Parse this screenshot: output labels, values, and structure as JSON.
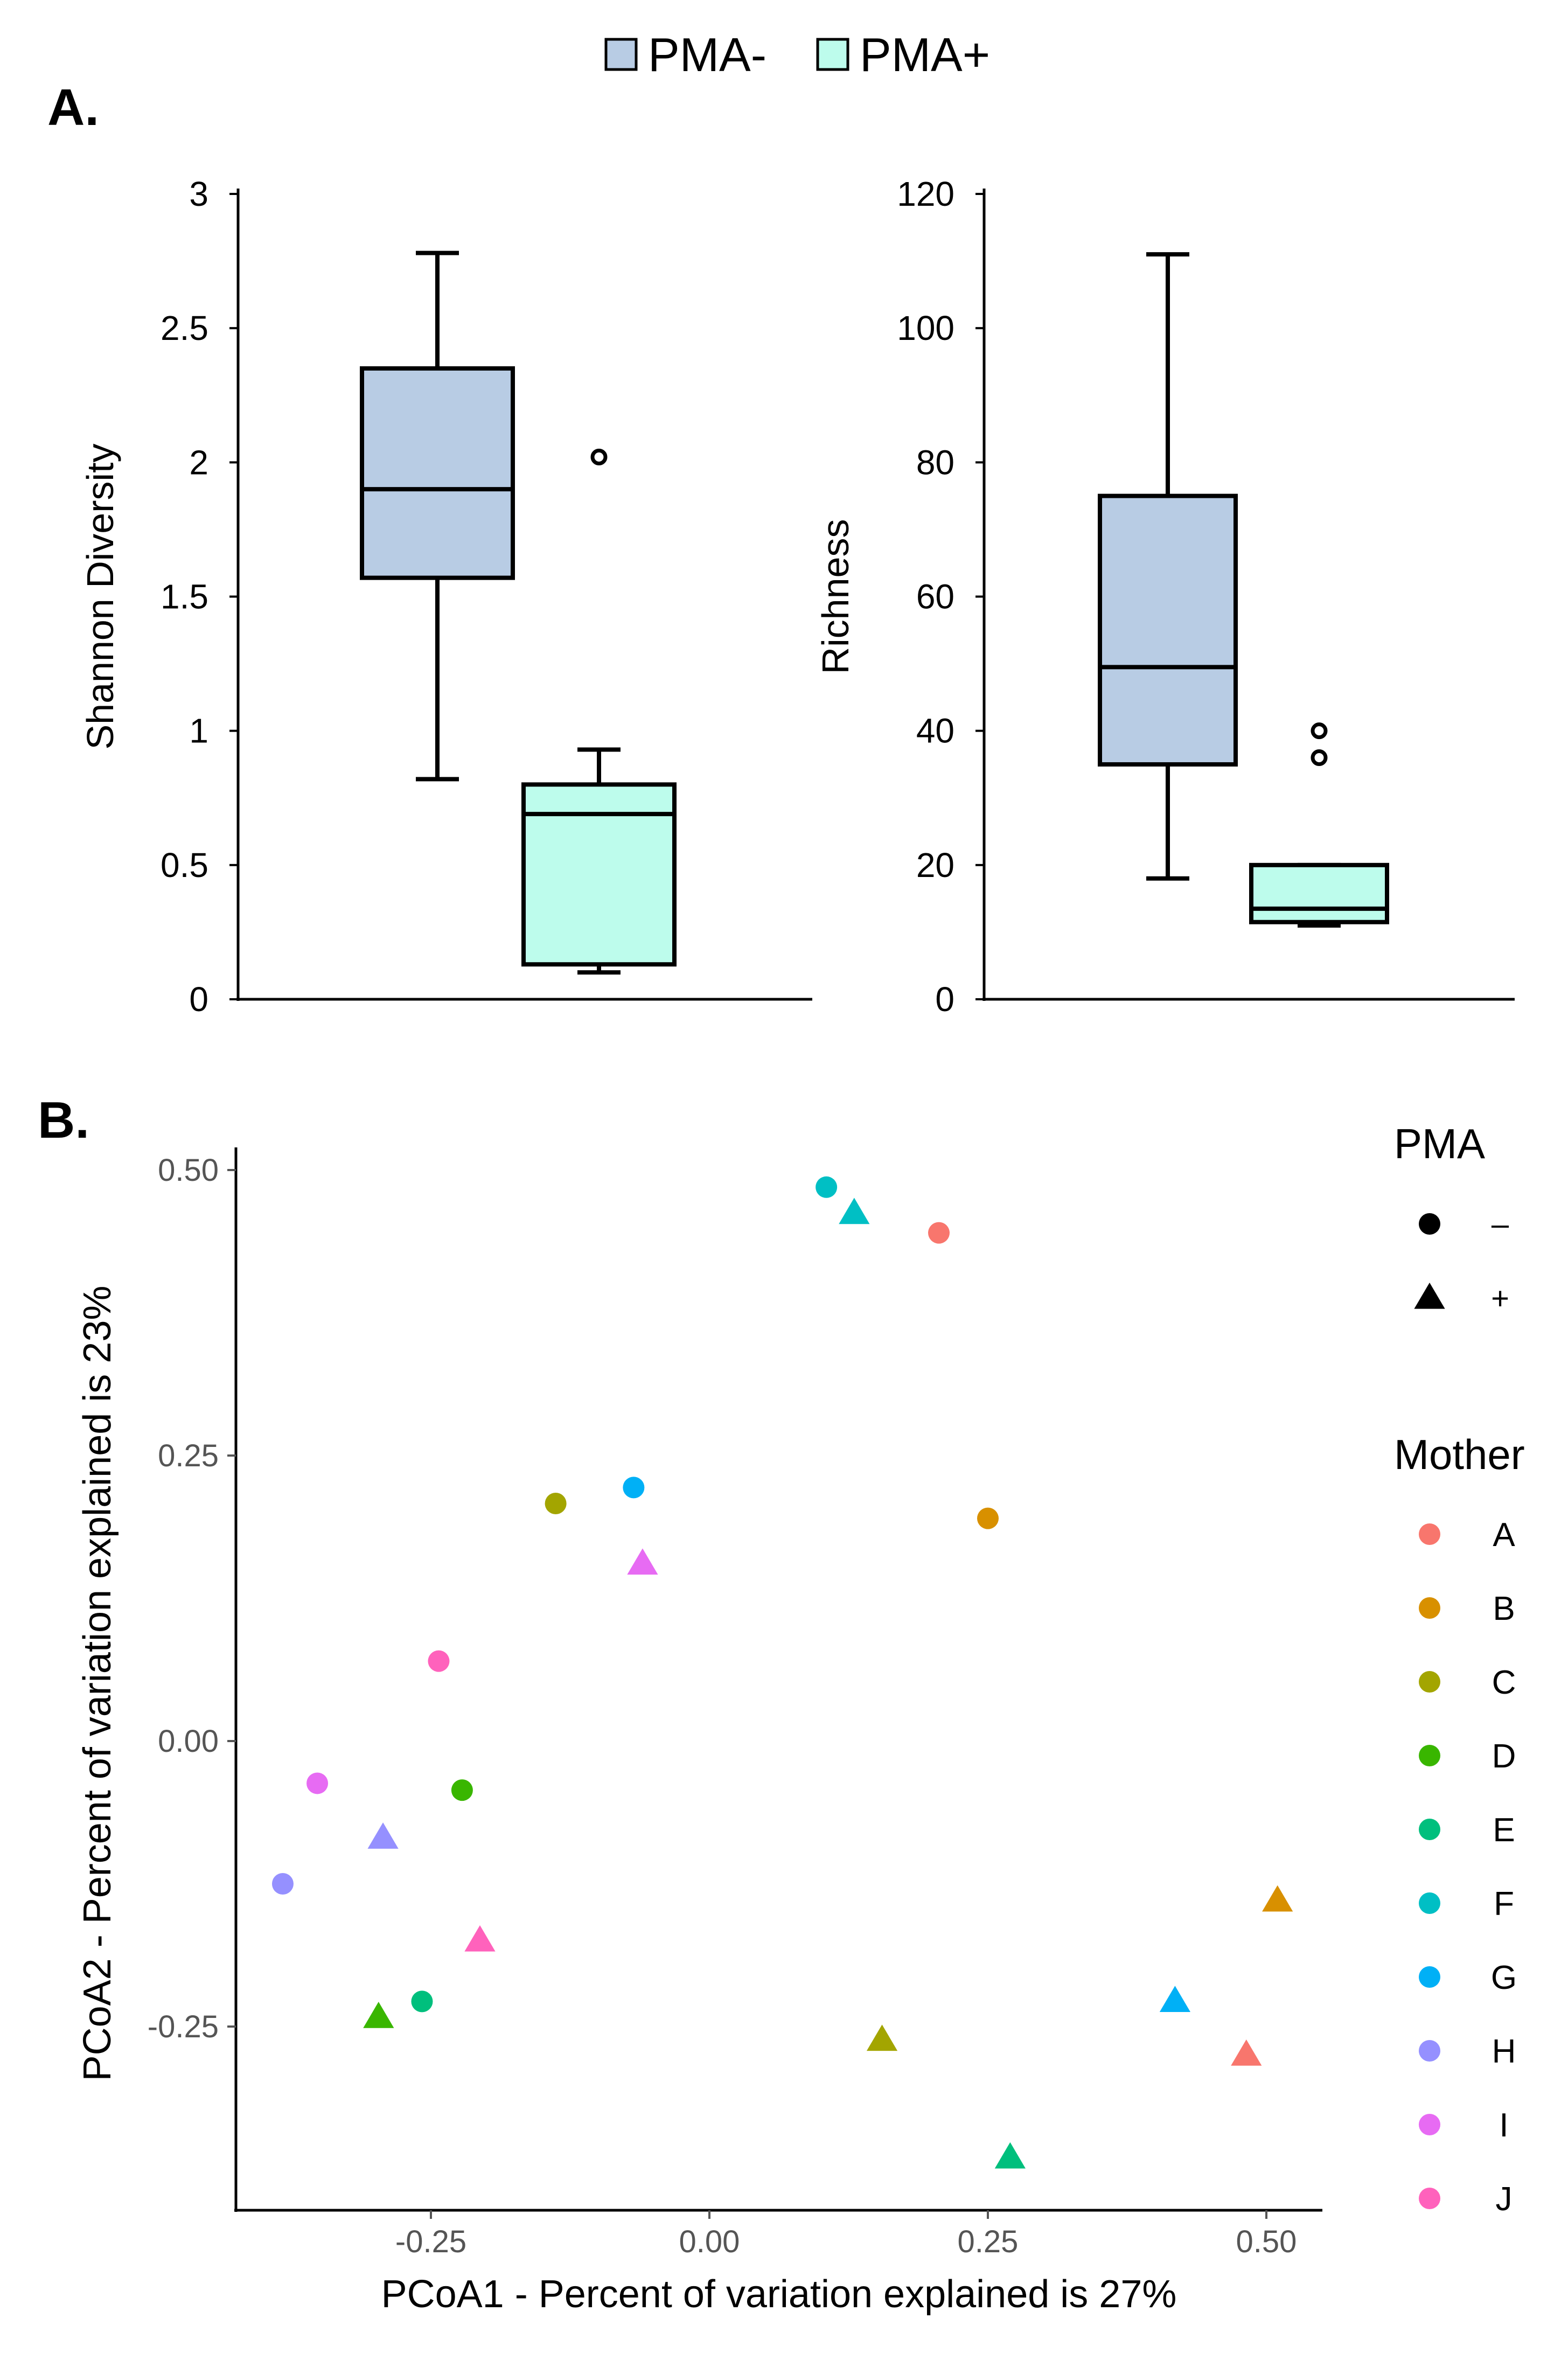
{
  "legend_top": {
    "items": [
      {
        "label": "PMA-",
        "color": "#b8cce4"
      },
      {
        "label": "PMA+",
        "color": "#bdfcec"
      }
    ]
  },
  "panel_a": {
    "label": "A."
  },
  "panel_b": {
    "label": "B."
  },
  "chart_data": [
    {
      "type": "box",
      "title": "",
      "ylabel": "Shannon Diversity",
      "xlabel": "",
      "ylim": [
        0,
        3
      ],
      "yticks": [
        {
          "v": 0,
          "label": "0"
        },
        {
          "v": 0.5,
          "label": "0.5"
        },
        {
          "v": 1,
          "label": "1"
        },
        {
          "v": 1.5,
          "label": "1.5"
        },
        {
          "v": 2,
          "label": "2"
        },
        {
          "v": 2.5,
          "label": "2.5"
        },
        {
          "v": 3,
          "label": "3"
        }
      ],
      "boxes": [
        {
          "group": "PMA-",
          "color": "#b8cce4",
          "whisker_low": 0.82,
          "q1": 1.57,
          "median": 1.9,
          "q3": 2.35,
          "whisker_high": 2.78,
          "outliers": []
        },
        {
          "group": "PMA+",
          "color": "#bdfcec",
          "whisker_low": 0.1,
          "q1": 0.13,
          "median": 0.69,
          "q3": 0.8,
          "whisker_high": 0.93,
          "outliers": [
            2.02
          ]
        }
      ]
    },
    {
      "type": "box",
      "title": "",
      "ylabel": "Richness",
      "xlabel": "",
      "ylim": [
        0,
        120
      ],
      "yticks": [
        {
          "v": 0,
          "label": "0"
        },
        {
          "v": 20,
          "label": "20"
        },
        {
          "v": 40,
          "label": "40"
        },
        {
          "v": 60,
          "label": "60"
        },
        {
          "v": 80,
          "label": "80"
        },
        {
          "v": 100,
          "label": "100"
        },
        {
          "v": 120,
          "label": "120"
        }
      ],
      "boxes": [
        {
          "group": "PMA-",
          "color": "#b8cce4",
          "whisker_low": 18,
          "q1": 35,
          "median": 49.5,
          "q3": 75,
          "whisker_high": 111,
          "outliers": []
        },
        {
          "group": "PMA+",
          "color": "#bdfcec",
          "whisker_low": 11,
          "q1": 11.5,
          "median": 13.5,
          "q3": 20,
          "whisker_high": 20,
          "outliers": [
            36,
            40
          ]
        }
      ]
    },
    {
      "type": "scatter",
      "title": "",
      "xlabel": "PCoA1 - Percent of variation explained is 27%",
      "ylabel": "PCoA2 - Percent of variation explained is 23%",
      "xlim": [
        -0.43,
        0.55
      ],
      "ylim": [
        -0.41,
        0.54
      ],
      "xticks": [
        {
          "v": -0.25,
          "label": "-0.25"
        },
        {
          "v": 0,
          "label": "0.00"
        },
        {
          "v": 0.25,
          "label": "0.25"
        },
        {
          "v": 0.5,
          "label": "0.50"
        }
      ],
      "yticks": [
        {
          "v": -0.25,
          "label": "-0.25"
        },
        {
          "v": 0,
          "label": "0.00"
        },
        {
          "v": 0.25,
          "label": "0.25"
        },
        {
          "v": 0.5,
          "label": "0.50"
        }
      ],
      "shape_legend": {
        "title": "PMA",
        "items": [
          {
            "shape": "circle",
            "label": "–"
          },
          {
            "shape": "triangle",
            "label": "+"
          }
        ]
      },
      "color_legend": {
        "title": "Mother",
        "items": [
          {
            "label": "A",
            "color": "#f8766d"
          },
          {
            "label": "B",
            "color": "#d89000"
          },
          {
            "label": "C",
            "color": "#a3a500"
          },
          {
            "label": "D",
            "color": "#39b600"
          },
          {
            "label": "E",
            "color": "#00bf7d"
          },
          {
            "label": "F",
            "color": "#00bfc4"
          },
          {
            "label": "G",
            "color": "#00b0f6"
          },
          {
            "label": "H",
            "color": "#9590ff"
          },
          {
            "label": "I",
            "color": "#e76bf3"
          },
          {
            "label": "J",
            "color": "#ff62bc"
          }
        ]
      },
      "points": [
        {
          "mother": "A",
          "pma": "-",
          "x": 0.206,
          "y": 0.445
        },
        {
          "mother": "A",
          "pma": "+",
          "x": 0.482,
          "y": -0.275
        },
        {
          "mother": "B",
          "pma": "-",
          "x": 0.25,
          "y": 0.195
        },
        {
          "mother": "B",
          "pma": "+",
          "x": 0.51,
          "y": -0.14
        },
        {
          "mother": "C",
          "pma": "-",
          "x": -0.138,
          "y": 0.208
        },
        {
          "mother": "C",
          "pma": "+",
          "x": 0.155,
          "y": -0.262
        },
        {
          "mother": "D",
          "pma": "-",
          "x": -0.222,
          "y": -0.043
        },
        {
          "mother": "D",
          "pma": "+",
          "x": -0.297,
          "y": -0.242
        },
        {
          "mother": "E",
          "pma": "-",
          "x": -0.258,
          "y": -0.228
        },
        {
          "mother": "E",
          "pma": "+",
          "x": 0.27,
          "y": -0.365
        },
        {
          "mother": "F",
          "pma": "-",
          "x": 0.105,
          "y": 0.485
        },
        {
          "mother": "F",
          "pma": "+",
          "x": 0.13,
          "y": 0.462
        },
        {
          "mother": "G",
          "pma": "-",
          "x": -0.068,
          "y": 0.222
        },
        {
          "mother": "G",
          "pma": "+",
          "x": 0.418,
          "y": -0.228
        },
        {
          "mother": "H",
          "pma": "-",
          "x": -0.383,
          "y": -0.125
        },
        {
          "mother": "H",
          "pma": "+",
          "x": -0.293,
          "y": -0.085
        },
        {
          "mother": "I",
          "pma": "-",
          "x": -0.352,
          "y": -0.037
        },
        {
          "mother": "I",
          "pma": "+",
          "x": -0.06,
          "y": 0.155
        },
        {
          "mother": "J",
          "pma": "-",
          "x": -0.243,
          "y": 0.07
        },
        {
          "mother": "J",
          "pma": "+",
          "x": -0.206,
          "y": -0.175
        }
      ]
    }
  ]
}
